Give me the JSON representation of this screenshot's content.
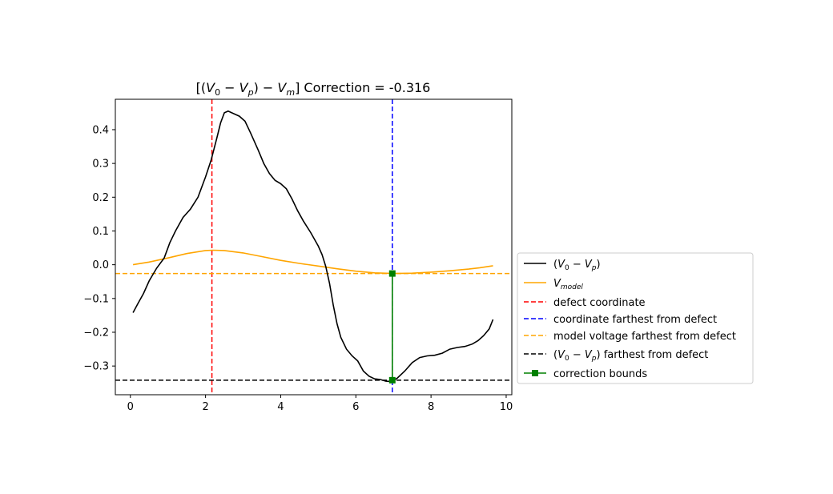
{
  "chart_data": {
    "type": "line",
    "title": {
      "math": {
        "open": "[(",
        "v0": "V",
        "sub0": "0",
        "minus": " − ",
        "vp": "V",
        "subp": "p",
        "close": ") − ",
        "vm": "V",
        "subm": "m",
        "end": "]"
      },
      "rest": " Correction = -0.316"
    },
    "xlim": [
      -0.4,
      10.15
    ],
    "ylim": [
      -0.385,
      0.49
    ],
    "x_ticks": [
      0,
      2,
      4,
      6,
      8,
      10
    ],
    "x_tick_labels": [
      "0",
      "2",
      "4",
      "6",
      "8",
      "10"
    ],
    "y_ticks": [
      -0.3,
      -0.2,
      -0.1,
      0.0,
      0.1,
      0.2,
      0.3,
      0.4
    ],
    "y_tick_labels": [
      "−0.3",
      "−0.2",
      "−0.1",
      "0.0",
      "0.1",
      "0.2",
      "0.3",
      "0.4"
    ],
    "grid": false,
    "legend_placement": "center-right outside",
    "series": [
      {
        "label_parts": {
          "open": "(",
          "v0": "V",
          "sub0": "0",
          "minus": " − ",
          "vp": "V",
          "subp": "p",
          "close": ")"
        },
        "color": "#000000",
        "style": "solid",
        "x": [
          0.07,
          0.2,
          0.35,
          0.5,
          0.7,
          0.9,
          1.05,
          1.2,
          1.4,
          1.6,
          1.8,
          2.0,
          2.15,
          2.3,
          2.4,
          2.5,
          2.6,
          2.8,
          2.9,
          3.05,
          3.2,
          3.4,
          3.55,
          3.7,
          3.85,
          4.0,
          4.15,
          4.3,
          4.45,
          4.6,
          4.8,
          5.0,
          5.1,
          5.2,
          5.3,
          5.4,
          5.5,
          5.6,
          5.75,
          5.9,
          6.05,
          6.2,
          6.35,
          6.5,
          6.65,
          6.8,
          6.95,
          7.1,
          7.3,
          7.5,
          7.7,
          7.9,
          8.1,
          8.3,
          8.5,
          8.7,
          8.9,
          9.1,
          9.25,
          9.4,
          9.55,
          9.65
        ],
        "y": [
          -0.142,
          -0.115,
          -0.085,
          -0.048,
          -0.01,
          0.02,
          0.065,
          0.1,
          0.14,
          0.165,
          0.2,
          0.26,
          0.31,
          0.375,
          0.42,
          0.45,
          0.455,
          0.445,
          0.44,
          0.425,
          0.39,
          0.34,
          0.3,
          0.27,
          0.25,
          0.24,
          0.225,
          0.195,
          0.16,
          0.13,
          0.095,
          0.055,
          0.03,
          -0.005,
          -0.055,
          -0.12,
          -0.175,
          -0.215,
          -0.25,
          -0.27,
          -0.285,
          -0.315,
          -0.33,
          -0.338,
          -0.34,
          -0.345,
          -0.346,
          -0.336,
          -0.315,
          -0.29,
          -0.275,
          -0.27,
          -0.268,
          -0.262,
          -0.25,
          -0.245,
          -0.242,
          -0.235,
          -0.225,
          -0.21,
          -0.19,
          -0.162
        ]
      },
      {
        "label_parts": {
          "v": "V",
          "sub": "model"
        },
        "color": "#ffa500",
        "style": "solid",
        "x": [
          0.07,
          0.5,
          1.0,
          1.5,
          2.0,
          2.2,
          2.5,
          3.0,
          3.5,
          4.0,
          4.5,
          5.0,
          5.5,
          6.0,
          6.5,
          7.0,
          7.5,
          8.0,
          8.5,
          9.0,
          9.3,
          9.65
        ],
        "y": [
          0.0,
          0.008,
          0.02,
          0.033,
          0.042,
          0.043,
          0.042,
          0.035,
          0.024,
          0.013,
          0.004,
          -0.004,
          -0.012,
          -0.019,
          -0.024,
          -0.026,
          -0.025,
          -0.022,
          -0.018,
          -0.013,
          -0.009,
          -0.003
        ]
      }
    ],
    "reference_lines": [
      {
        "label": "defect coordinate",
        "orientation": "vertical",
        "value": 2.17,
        "color": "#ff0000",
        "style": "dashed"
      },
      {
        "label": "coordinate farthest from defect",
        "orientation": "vertical",
        "value": 6.97,
        "color": "#0000ff",
        "style": "dashed"
      },
      {
        "label": "model voltage farthest from defect",
        "orientation": "horizontal",
        "value": -0.026,
        "color": "#ffa500",
        "style": "dashed"
      },
      {
        "label_parts": {
          "open": "(",
          "v0": "V",
          "sub0": "0",
          "minus": " − ",
          "vp": "V",
          "subp": "p",
          "close": ")",
          "rest": " farthest from defect"
        },
        "orientation": "horizontal",
        "value": -0.342,
        "color": "#000000",
        "style": "dashed"
      }
    ],
    "correction_bounds": {
      "label": "correction bounds",
      "color": "#008000",
      "x": [
        6.97,
        6.97
      ],
      "y": [
        -0.026,
        -0.342
      ]
    }
  }
}
